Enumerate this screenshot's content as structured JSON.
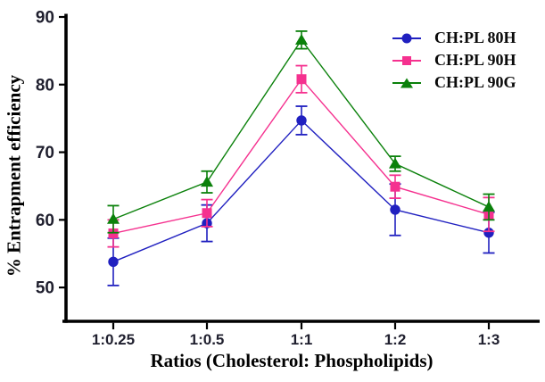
{
  "chart_data": {
    "type": "line",
    "title": "",
    "xlabel": "Ratios (Cholesterol: Phospholipids)",
    "ylabel": "% Entrapment efficiency",
    "categories": [
      "1:0.25",
      "1:0.5",
      "1:1",
      "1:2",
      "1:3"
    ],
    "yticks": [
      50,
      60,
      70,
      80,
      90
    ],
    "ylim": [
      45,
      90
    ],
    "grid": false,
    "error_bars": true,
    "legend_position": "top-right",
    "axis_color": "#000000",
    "tick_label_color": "#1f1f2e",
    "series": [
      {
        "name": "CH:PL 80H",
        "marker": "circle",
        "color": "#2020C0",
        "values": [
          53.8,
          59.5,
          74.7,
          61.5,
          58.1
        ],
        "errors": [
          3.5,
          2.7,
          2.1,
          3.8,
          3.0
        ]
      },
      {
        "name": "CH:PL 90H",
        "marker": "square",
        "color": "#F5318F",
        "values": [
          58.0,
          61.0,
          80.8,
          64.9,
          60.8
        ],
        "errors": [
          2.0,
          2.0,
          2.0,
          1.7,
          2.5
        ]
      },
      {
        "name": "CH:PL 90G",
        "marker": "triangle",
        "color": "#0B810B",
        "values": [
          60.1,
          65.6,
          86.6,
          68.3,
          61.9
        ],
        "errors": [
          2.0,
          1.6,
          1.3,
          1.1,
          1.9
        ]
      }
    ]
  }
}
